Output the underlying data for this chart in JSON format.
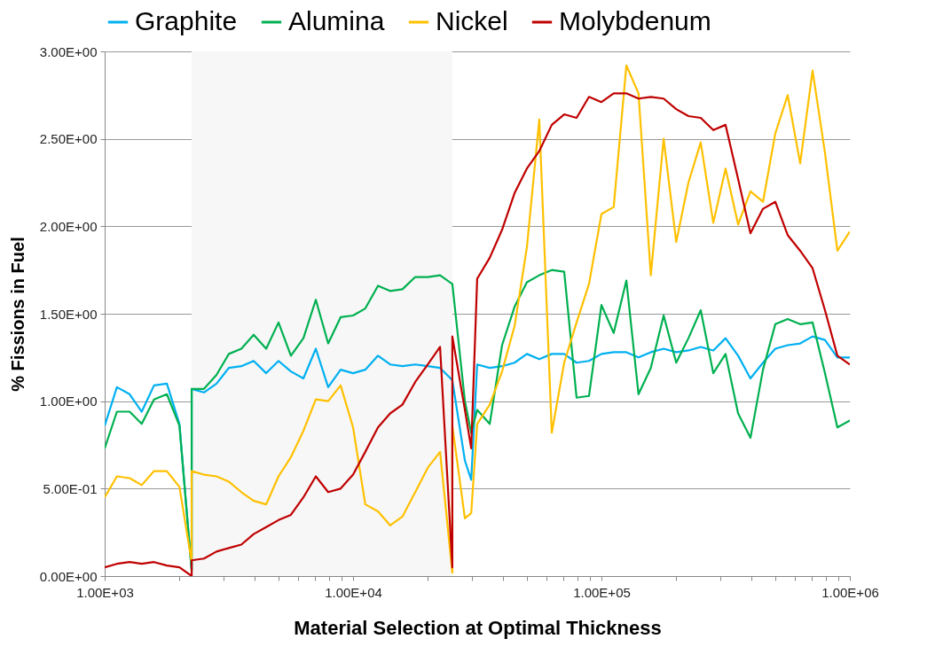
{
  "chart_data": {
    "type": "line",
    "xlabel": "Material Selection at Optimal Thickness",
    "ylabel": "% Fissions in Fuel",
    "log": "x",
    "xlim": [
      1000,
      1000000
    ],
    "xticks": [
      {
        "value": 1000,
        "label": "1.00E+03"
      },
      {
        "value": 2000,
        "label": null
      },
      {
        "value": 3000,
        "label": null
      },
      {
        "value": 4000,
        "label": null
      },
      {
        "value": 5000,
        "label": null
      },
      {
        "value": 6000,
        "label": null
      },
      {
        "value": 7000,
        "label": null
      },
      {
        "value": 8000,
        "label": null
      },
      {
        "value": 9000,
        "label": null
      },
      {
        "value": 10000,
        "label": "1.00E+04"
      },
      {
        "value": 20000,
        "label": null
      },
      {
        "value": 30000,
        "label": null
      },
      {
        "value": 40000,
        "label": null
      },
      {
        "value": 50000,
        "label": null
      },
      {
        "value": 60000,
        "label": null
      },
      {
        "value": 70000,
        "label": null
      },
      {
        "value": 80000,
        "label": null
      },
      {
        "value": 90000,
        "label": null
      },
      {
        "value": 100000,
        "label": "1.00E+05"
      },
      {
        "value": 200000,
        "label": null
      },
      {
        "value": 300000,
        "label": null
      },
      {
        "value": 400000,
        "label": null
      },
      {
        "value": 500000,
        "label": null
      },
      {
        "value": 600000,
        "label": null
      },
      {
        "value": 700000,
        "label": null
      },
      {
        "value": 800000,
        "label": null
      },
      {
        "value": 900000,
        "label": null
      },
      {
        "value": 1000000,
        "label": "1.00E+06"
      }
    ],
    "ylim": [
      0,
      3
    ],
    "yticks": [
      {
        "value": 0,
        "label": "0.00E+00"
      },
      {
        "value": 0.5,
        "label": "5.00E-01"
      },
      {
        "value": 1,
        "label": "1.00E+00"
      },
      {
        "value": 1.5,
        "label": "1.50E+00"
      },
      {
        "value": 2,
        "label": "2.00E+00"
      },
      {
        "value": 2.5,
        "label": "2.50E+00"
      },
      {
        "value": 3,
        "label": "3.00E+00"
      }
    ],
    "grid": "y",
    "legend": "top",
    "bands": [
      {
        "axis": "x",
        "from": 2240,
        "to": 25100,
        "color": "#f7f7f7"
      }
    ],
    "x": [
      1000,
      1120,
      1260,
      1410,
      1580,
      1780,
      2000,
      2240,
      2240,
      2510,
      2820,
      3160,
      3550,
      3980,
      4470,
      5010,
      5620,
      6310,
      7080,
      7940,
      8910,
      10000,
      11200,
      12600,
      14100,
      15800,
      17800,
      20000,
      22400,
      25100,
      25100,
      28200,
      29900,
      31600,
      35500,
      39800,
      44700,
      50100,
      56200,
      63100,
      70800,
      79400,
      89100,
      100000,
      112000,
      126000,
      141000,
      158000,
      178000,
      200000,
      224000,
      251000,
      282000,
      316000,
      355000,
      398000,
      447000,
      501000,
      562000,
      631000,
      708000,
      794000,
      891000,
      1000000
    ],
    "series": [
      {
        "name": "Graphite",
        "color": "#00b0f0",
        "values": [
          0.86,
          1.08,
          1.04,
          0.94,
          1.09,
          1.1,
          0.87,
          0.03,
          1.07,
          1.05,
          1.1,
          1.19,
          1.2,
          1.23,
          1.16,
          1.23,
          1.17,
          1.13,
          1.3,
          1.08,
          1.18,
          1.16,
          1.18,
          1.26,
          1.21,
          1.2,
          1.21,
          1.2,
          1.19,
          null,
          1.12,
          0.66,
          0.55,
          1.21,
          1.19,
          1.2,
          1.22,
          1.27,
          1.24,
          1.27,
          1.27,
          1.22,
          1.23,
          1.27,
          1.28,
          1.28,
          1.25,
          1.28,
          1.3,
          1.28,
          1.29,
          1.31,
          1.29,
          1.36,
          1.26,
          1.13,
          1.22,
          1.3,
          1.32,
          1.33,
          1.37,
          1.35,
          1.25,
          1.25
        ]
      },
      {
        "name": "Alumina",
        "color": "#00b050",
        "values": [
          0.73,
          0.94,
          0.94,
          0.87,
          1.01,
          1.04,
          0.86,
          0.03,
          1.07,
          1.07,
          1.15,
          1.27,
          1.3,
          1.38,
          1.3,
          1.45,
          1.26,
          1.36,
          1.58,
          1.33,
          1.48,
          1.49,
          1.53,
          1.66,
          1.63,
          1.64,
          1.71,
          1.71,
          1.72,
          null,
          1.67,
          1.0,
          0.82,
          0.95,
          0.87,
          1.32,
          1.54,
          1.68,
          1.72,
          1.75,
          1.74,
          1.02,
          1.03,
          1.55,
          1.39,
          1.69,
          1.04,
          1.19,
          1.49,
          1.22,
          1.36,
          1.52,
          1.16,
          1.27,
          0.93,
          0.79,
          1.18,
          1.44,
          1.47,
          1.44,
          1.45,
          1.16,
          0.85,
          0.89
        ]
      },
      {
        "name": "Nickel",
        "color": "#ffc000",
        "values": [
          0.45,
          0.57,
          0.56,
          0.52,
          0.6,
          0.6,
          0.51,
          0.08,
          0.6,
          0.58,
          0.57,
          0.54,
          0.48,
          0.43,
          0.41,
          0.57,
          0.68,
          0.83,
          1.01,
          1.0,
          1.09,
          0.85,
          0.41,
          0.37,
          0.29,
          0.34,
          0.48,
          0.62,
          0.71,
          0.02,
          0.86,
          0.33,
          0.36,
          0.87,
          0.98,
          1.17,
          1.43,
          1.88,
          2.61,
          0.82,
          1.22,
          1.45,
          1.67,
          2.07,
          2.11,
          2.92,
          2.76,
          1.72,
          2.5,
          1.91,
          2.25,
          2.48,
          2.02,
          2.33,
          2.01,
          2.2,
          2.14,
          2.53,
          2.75,
          2.36,
          2.89,
          2.42,
          1.86,
          1.97
        ]
      },
      {
        "name": "Molybdenum",
        "color": "#c00000",
        "values": [
          0.05,
          0.07,
          0.08,
          0.07,
          0.08,
          0.06,
          0.05,
          0.0,
          0.09,
          0.1,
          0.14,
          0.16,
          0.18,
          0.24,
          0.28,
          0.32,
          0.35,
          0.45,
          0.57,
          0.48,
          0.5,
          0.58,
          0.71,
          0.85,
          0.93,
          0.98,
          1.11,
          1.21,
          1.31,
          0.05,
          1.37,
          0.95,
          0.73,
          1.7,
          1.82,
          1.98,
          2.19,
          2.33,
          2.43,
          2.58,
          2.64,
          2.62,
          2.74,
          2.71,
          2.76,
          2.76,
          2.73,
          2.74,
          2.73,
          2.67,
          2.63,
          2.62,
          2.55,
          2.58,
          2.27,
          1.96,
          2.1,
          2.14,
          1.95,
          1.86,
          1.76,
          1.52,
          1.26,
          1.21
        ]
      }
    ]
  }
}
